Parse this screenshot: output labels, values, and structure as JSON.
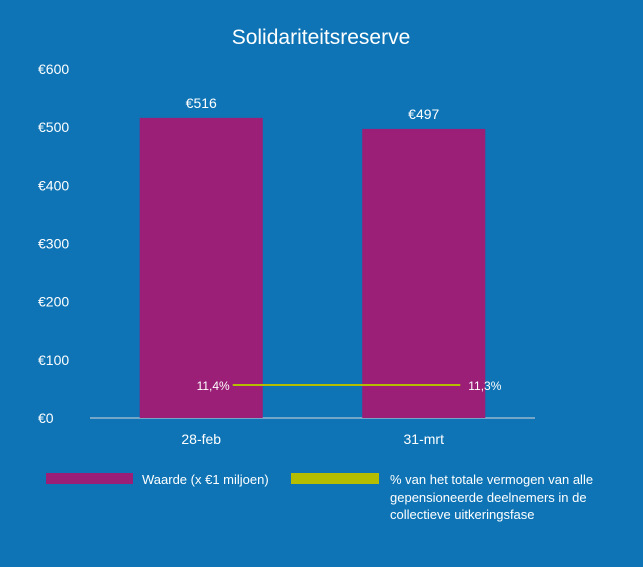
{
  "chart_data": {
    "type": "bar",
    "title": "Solidariteitsreserve",
    "categories": [
      "28-feb",
      "31-mrt"
    ],
    "series": [
      {
        "name": "Waarde (x €1 miljoen)",
        "type": "bar",
        "values": [
          516,
          497
        ],
        "value_labels": [
          "€516",
          "€497"
        ],
        "color": "#9b1f77"
      },
      {
        "name": "% van het totale vermogen van alle gepensioneerde deelnemers in de collectieve uitkeringsfase",
        "type": "line",
        "values": [
          11.4,
          11.3
        ],
        "value_labels": [
          "11,4%",
          "11,3%"
        ],
        "color": "#b5bd00"
      }
    ],
    "yticks": [
      "€0",
      "€100",
      "€200",
      "€300",
      "€400",
      "€500",
      "€600"
    ],
    "ylim": [
      0,
      600
    ],
    "grid": false,
    "legend_position": "bottom",
    "background": "#0e74b5",
    "text_color": "#ffffff"
  }
}
